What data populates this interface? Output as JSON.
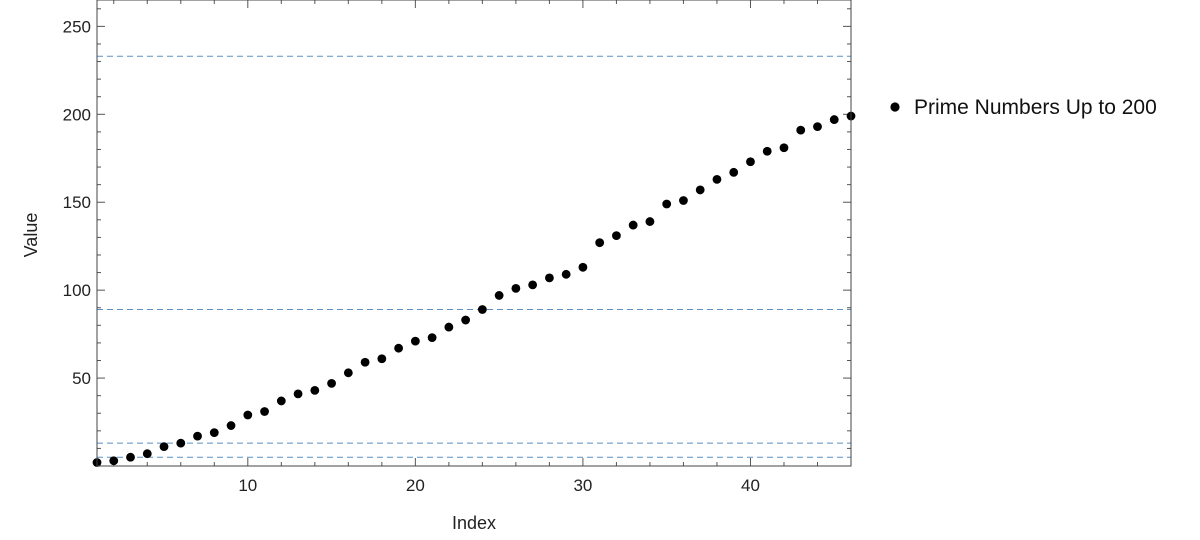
{
  "chart_data": {
    "type": "scatter",
    "title": "",
    "xlabel": "Index",
    "ylabel": "Value",
    "xlim": [
      1,
      46
    ],
    "ylim": [
      0,
      265
    ],
    "x_ticks": [
      10,
      20,
      30,
      40
    ],
    "y_ticks": [
      50,
      100,
      150,
      200,
      250
    ],
    "grid": false,
    "legend_position": "right",
    "colors": {
      "points": "#000000",
      "reference_lines": "#5b8fc4"
    },
    "series": [
      {
        "name": "Prime Numbers Up to 200",
        "x": [
          1,
          2,
          3,
          4,
          5,
          6,
          7,
          8,
          9,
          10,
          11,
          12,
          13,
          14,
          15,
          16,
          17,
          18,
          19,
          20,
          21,
          22,
          23,
          24,
          25,
          26,
          27,
          28,
          29,
          30,
          31,
          32,
          33,
          34,
          35,
          36,
          37,
          38,
          39,
          40,
          41,
          42,
          43,
          44,
          45,
          46
        ],
        "y": [
          2,
          3,
          5,
          7,
          11,
          13,
          17,
          19,
          23,
          29,
          31,
          37,
          41,
          43,
          47,
          53,
          59,
          61,
          67,
          71,
          73,
          79,
          83,
          89,
          97,
          101,
          103,
          107,
          109,
          113,
          127,
          131,
          137,
          139,
          149,
          151,
          157,
          163,
          167,
          173,
          179,
          181,
          191,
          193,
          197,
          199
        ]
      }
    ],
    "reference_lines": [
      {
        "axis": "y",
        "value": 233,
        "style": "dashed"
      },
      {
        "axis": "y",
        "value": 89,
        "style": "dashed"
      },
      {
        "axis": "y",
        "value": 13,
        "style": "dashed"
      },
      {
        "axis": "y",
        "value": 5,
        "style": "dashed"
      }
    ]
  }
}
